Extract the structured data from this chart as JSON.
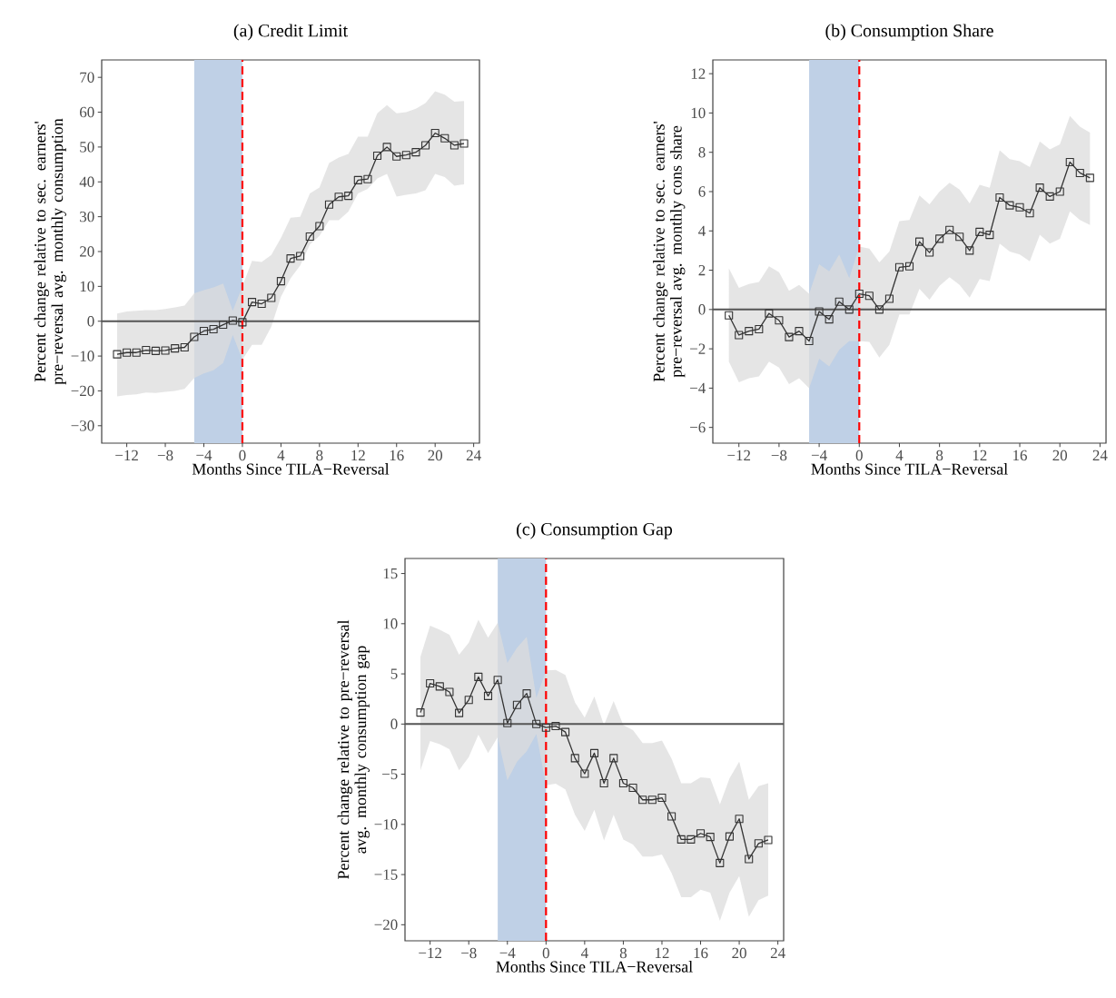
{
  "chart_data": [
    {
      "type": "line",
      "title": "(a) Credit Limit",
      "xlabel": "Months Since TILA−Reversal",
      "ylabel": "Percent change relative to sec. earners' pre−reversal avg. monthly consumption",
      "x": [
        -13,
        -12,
        -11,
        -10,
        -9,
        -8,
        -7,
        -6,
        -5,
        -4,
        -3,
        -2,
        -1,
        0,
        1,
        2,
        3,
        4,
        5,
        6,
        7,
        8,
        9,
        10,
        11,
        12,
        13,
        14,
        15,
        16,
        17,
        18,
        19,
        20,
        21,
        22,
        23
      ],
      "xlim": [
        -14.6,
        24.6
      ],
      "ylim": [
        -35,
        75
      ],
      "xticks": [
        {
          "value": -12,
          "label": "−12"
        },
        {
          "value": -8,
          "label": "−8"
        },
        {
          "value": -4,
          "label": "−4"
        },
        0,
        4,
        8,
        12,
        16,
        20,
        24
      ],
      "yticks": [
        {
          "value": -30,
          "label": "−30"
        },
        {
          "value": -20,
          "label": "−20"
        },
        {
          "value": -10,
          "label": "−10"
        },
        0,
        10,
        20,
        30,
        40,
        50,
        60,
        70
      ],
      "marker": "square",
      "line_style": "solid",
      "series": [
        {
          "color": "#333333",
          "values": [
            -9.5,
            -9,
            -9,
            -8.3,
            -8.5,
            -8.4,
            -7.8,
            -7.5,
            -4.5,
            -2.8,
            -2.3,
            -1,
            0.2,
            -0.3,
            5.5,
            5,
            6.7,
            11.5,
            18,
            18.7,
            24.3,
            27.3,
            33.5,
            35.7,
            36,
            40.5,
            40.8,
            47.5,
            50,
            47.3,
            47.7,
            48.5,
            50.5,
            54,
            52.5,
            50.5,
            51
          ],
          "upper": [
            2.2,
            2.8,
            3,
            3.2,
            3.2,
            3.5,
            4,
            4.5,
            8,
            8.9,
            9.7,
            10.8,
            3,
            10,
            17.3,
            17,
            19,
            23.9,
            29.7,
            30,
            36.7,
            38.4,
            45.4,
            47,
            48,
            53,
            53,
            59.7,
            62,
            59.7,
            60,
            61,
            62.6,
            66,
            65,
            63,
            63.2
          ],
          "lower": [
            -21.6,
            -21.2,
            -21,
            -20.5,
            -20.6,
            -20.3,
            -20,
            -19.4,
            -16.3,
            -15,
            -14.1,
            -12,
            -4,
            -11,
            -6.8,
            -6.8,
            -1.6,
            7,
            12.3,
            16,
            22,
            24.5,
            29,
            29,
            31.5,
            36.7,
            38,
            41,
            42.3,
            35.8,
            36.3,
            36.7,
            37.6,
            42.3,
            41.4,
            38.9,
            39.3
          ]
        }
      ],
      "ref_lines": [
        {
          "axis": "y",
          "value": 0,
          "color": "#555555",
          "line_style": "solid"
        },
        {
          "axis": "x",
          "value": 0,
          "color": "#ff0000",
          "line_style": "dashed"
        }
      ],
      "bands": [
        {
          "axis": "x",
          "from": -5,
          "to": 0,
          "color": "#bfd0e6"
        }
      ]
    },
    {
      "type": "line",
      "title": "(b) Consumption Share",
      "xlabel": "Months Since TILA−Reversal",
      "ylabel": "Percent change relative to sec. earners' pre−reversal avg. monthly cons share",
      "x": [
        -13,
        -12,
        -11,
        -10,
        -9,
        -8,
        -7,
        -6,
        -5,
        -4,
        -3,
        -2,
        -1,
        0,
        1,
        2,
        3,
        4,
        5,
        6,
        7,
        8,
        9,
        10,
        11,
        12,
        13,
        14,
        15,
        16,
        17,
        18,
        19,
        20,
        21,
        22,
        23
      ],
      "xlim": [
        -14.6,
        24.6
      ],
      "ylim": [
        -6.8,
        12.7
      ],
      "xticks": [
        {
          "value": -12,
          "label": "−12"
        },
        {
          "value": -8,
          "label": "−8"
        },
        {
          "value": -4,
          "label": "−4"
        },
        0,
        4,
        8,
        12,
        16,
        20,
        24
      ],
      "yticks": [
        {
          "value": -6,
          "label": "−6"
        },
        {
          "value": -4,
          "label": "−4"
        },
        {
          "value": -2,
          "label": "−2"
        },
        0,
        2,
        4,
        6,
        8,
        10,
        12
      ],
      "marker": "square",
      "line_style": "solid",
      "series": [
        {
          "color": "#333333",
          "values": [
            -0.3,
            -1.3,
            -1.1,
            -1.0,
            -0.2,
            -0.55,
            -1.4,
            -1.1,
            -1.6,
            -0.1,
            -0.5,
            0.4,
            0.0,
            0.8,
            0.7,
            0.0,
            0.55,
            2.15,
            2.2,
            3.45,
            2.9,
            3.6,
            4.05,
            3.7,
            3.0,
            3.95,
            3.8,
            5.7,
            5.3,
            5.2,
            4.9,
            6.2,
            5.75,
            6.0,
            7.5,
            6.95,
            6.7
          ],
          "upper": [
            2.1,
            1.1,
            1.3,
            1.4,
            2.2,
            1.9,
            0.95,
            1.25,
            0.8,
            2.3,
            1.95,
            2.8,
            1.6,
            3.2,
            3.1,
            2.4,
            2.95,
            4.5,
            4.55,
            5.8,
            5.35,
            6.0,
            6.45,
            6.1,
            5.4,
            6.35,
            6.2,
            8.1,
            7.65,
            7.55,
            7.25,
            8.55,
            8.15,
            8.4,
            9.85,
            9.3,
            9.0
          ],
          "lower": [
            -2.65,
            -3.7,
            -3.5,
            -3.4,
            -2.65,
            -2.95,
            -3.8,
            -3.5,
            -4.0,
            -2.5,
            -2.9,
            -2.05,
            -1.6,
            -1.6,
            -1.65,
            -2.45,
            -1.8,
            -0.25,
            -0.25,
            1.05,
            0.5,
            1.2,
            1.65,
            1.25,
            0.6,
            1.55,
            1.45,
            3.35,
            2.95,
            2.8,
            2.45,
            3.8,
            3.35,
            3.6,
            5.0,
            4.55,
            4.3
          ]
        }
      ],
      "ref_lines": [
        {
          "axis": "y",
          "value": 0,
          "color": "#555555",
          "line_style": "solid"
        },
        {
          "axis": "x",
          "value": 0,
          "color": "#ff0000",
          "line_style": "dashed"
        }
      ],
      "bands": [
        {
          "axis": "x",
          "from": -5,
          "to": 0,
          "color": "#bfd0e6"
        }
      ]
    },
    {
      "type": "line",
      "title": "(c) Consumption Gap",
      "xlabel": "Months Since TILA−Reversal",
      "ylabel": "Percent change relative to pre−reversal avg. monthly consumption gap",
      "x": [
        -13,
        -12,
        -11,
        -10,
        -9,
        -8,
        -7,
        -6,
        -5,
        -4,
        -3,
        -2,
        -1,
        0,
        1,
        2,
        3,
        4,
        5,
        6,
        7,
        8,
        9,
        10,
        11,
        12,
        13,
        14,
        15,
        16,
        17,
        18,
        19,
        20,
        21,
        22,
        23
      ],
      "xlim": [
        -14.6,
        24.6
      ],
      "ylim": [
        -21.6,
        16.5
      ],
      "xticks": [
        {
          "value": -12,
          "label": "−12"
        },
        {
          "value": -8,
          "label": "−8"
        },
        {
          "value": -4,
          "label": "−4"
        },
        0,
        4,
        8,
        12,
        16,
        20,
        24
      ],
      "yticks": [
        {
          "value": -20,
          "label": "−20"
        },
        {
          "value": -15,
          "label": "−15"
        },
        {
          "value": -10,
          "label": "−10"
        },
        {
          "value": -5,
          "label": "−5"
        },
        0,
        5,
        10,
        15
      ],
      "marker": "square",
      "line_style": "solid",
      "series": [
        {
          "color": "#333333",
          "values": [
            1.15,
            4.05,
            3.75,
            3.2,
            1.1,
            2.4,
            4.7,
            2.8,
            4.4,
            0.1,
            1.9,
            3.05,
            0.0,
            -0.35,
            -0.2,
            -0.8,
            -3.4,
            -4.95,
            -2.9,
            -5.9,
            -3.4,
            -5.9,
            -6.35,
            -7.55,
            -7.55,
            -7.35,
            -9.2,
            -11.5,
            -11.5,
            -10.9,
            -11.25,
            -13.85,
            -11.2,
            -9.45,
            -13.45,
            -11.9,
            -11.55
          ],
          "upper": [
            6.7,
            9.8,
            9.4,
            8.9,
            6.9,
            8.1,
            10.4,
            8.6,
            10.1,
            6.1,
            7.6,
            8.7,
            2.6,
            5.35,
            5.4,
            4.9,
            2.15,
            0.65,
            2.75,
            -0.1,
            2.3,
            -0.1,
            -0.6,
            -1.9,
            -1.9,
            -1.65,
            -3.45,
            -5.9,
            -5.9,
            -5.3,
            -5.4,
            -8.0,
            -5.4,
            -3.75,
            -7.55,
            -6.2,
            -5.9
          ],
          "lower": [
            -4.6,
            -1.7,
            -2.0,
            -2.5,
            -4.6,
            -3.3,
            -1.05,
            -2.9,
            -1.3,
            -5.6,
            -3.75,
            -2.7,
            -1.0,
            -6.1,
            -5.95,
            -6.5,
            -9.05,
            -10.65,
            -8.55,
            -11.6,
            -9.05,
            -11.5,
            -12.0,
            -13.2,
            -13.2,
            -13.0,
            -14.85,
            -17.25,
            -17.25,
            -16.5,
            -16.8,
            -19.6,
            -16.8,
            -15.15,
            -19.2,
            -17.55,
            -17.1
          ]
        }
      ],
      "ref_lines": [
        {
          "axis": "y",
          "value": 0,
          "color": "#555555",
          "line_style": "solid"
        },
        {
          "axis": "x",
          "value": 0,
          "color": "#ff0000",
          "line_style": "dashed"
        }
      ],
      "bands": [
        {
          "axis": "x",
          "from": -5,
          "to": 0,
          "color": "#bfd0e6"
        }
      ]
    }
  ]
}
